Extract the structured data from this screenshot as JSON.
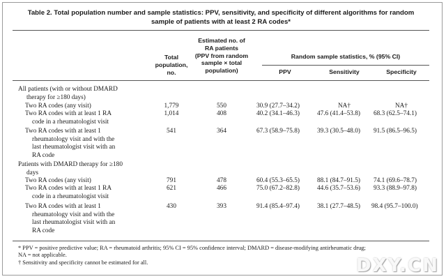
{
  "caption": {
    "line1": "Table 2.  Total population number and sample statistics: PPV, sensitivity, and specificity of different algorithms for random",
    "line2": "sample of patients with at least 2 RA codes*"
  },
  "headers": {
    "total": [
      "Total",
      "population,",
      "no."
    ],
    "estimated": [
      "Estimated no. of",
      "RA patients",
      "(PPV from random",
      "sample × total",
      "population)"
    ],
    "random_stats": "Random sample statistics, % (95% CI)",
    "ppv": "PPV",
    "sensitivity": "Sensitivity",
    "specificity": "Specificity"
  },
  "groups": [
    {
      "label": [
        "All patients (with or without DMARD",
        "therapy for ≥180 days)"
      ],
      "rows": [
        {
          "label": [
            "Two RA codes (any visit)"
          ],
          "total": "1,779",
          "estimated": "550",
          "ppv": "30.9 (27.7–34.2)",
          "sens": "NA†",
          "spec": "NA†"
        },
        {
          "label": [
            "Two RA codes with at least 1 RA",
            "code in a rheumatologist visit"
          ],
          "total": "1,014",
          "estimated": "408",
          "ppv": "40.2 (34.1–46.3)",
          "sens": "47.6 (41.4–53.8)",
          "spec": "68.3 (62.5–74.1)"
        },
        {
          "label": [
            "Two RA codes with at least 1",
            "rheumatology visit and with the",
            "last rheumatologist visit with an",
            "RA code"
          ],
          "total": "541",
          "estimated": "364",
          "ppv": "67.3 (58.9–75.8)",
          "sens": "39.3 (30.5–48.0)",
          "spec": "91.5 (86.5–96.5)"
        }
      ]
    },
    {
      "label": [
        "Patients with DMARD therapy for ≥180",
        "days"
      ],
      "rows": [
        {
          "label": [
            "Two RA codes (any visit)"
          ],
          "total": "791",
          "estimated": "478",
          "ppv": "60.4 (55.3–65.5)",
          "sens": "88.1 (84.7–91.5)",
          "spec": "74.1 (69.6–78.7)"
        },
        {
          "label": [
            "Two RA codes with at least 1 RA",
            "code in a rheumatologist visit"
          ],
          "total": "621",
          "estimated": "466",
          "ppv": "75.0 (67.2–82.8)",
          "sens": "44.6 (35.7–53.6)",
          "spec": "93.3 (88.9–97.8)"
        },
        {
          "label": [
            "Two RA codes with at least 1",
            "rheumatology visit and with the",
            "last rheumatologist visit with an",
            "RA code"
          ],
          "total": "430",
          "estimated": "393",
          "ppv": "91.4 (85.4–97.4)",
          "sens": "38.1 (27.7–48.5)",
          "spec": "98.4 (95.7–100.0)"
        }
      ]
    }
  ],
  "footnotes": [
    "* PPV = positive predictive value; RA = rheumatoid arthritis; 95% CI = 95% confidence interval; DMARD = disease-modifying antirheumatic drug;",
    "NA = not applicable.",
    "† Sensitivity and specificity cannot be estimated for all."
  ],
  "watermark": "DXY.CN"
}
